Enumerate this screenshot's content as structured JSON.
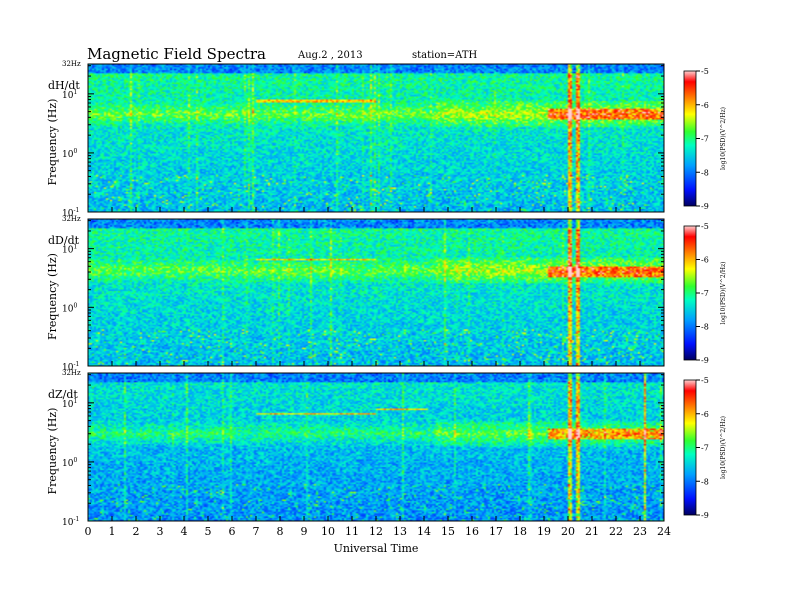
{
  "header": {
    "title": "Magnetic  Field  Spectra",
    "date": "Aug.2  , 2013",
    "station": "station=ATH"
  },
  "chart_data": [
    {
      "type": "heatmap",
      "component": "dH/dt",
      "ylabel": "Frequency  (Hz)",
      "xlabel": "",
      "xlim": [
        0,
        24
      ],
      "ylim": [
        0.1,
        32
      ],
      "yscale": "log",
      "top_label": "32Hz",
      "y_ticks": [
        {
          "label": "10",
          "exp": "1",
          "value": 10
        },
        {
          "label": "10",
          "exp": "0",
          "value": 1
        },
        {
          "label": "10",
          "exp": "-1",
          "value": 0.1
        }
      ],
      "colorbar": {
        "ticks": [
          "-5",
          "-6",
          "-7",
          "-8",
          "-9"
        ],
        "range": [
          -9,
          -5
        ],
        "label": "log10(PSD)(V^2/Hz)"
      },
      "features": {
        "band_freq": 4.5,
        "line_segments": [
          {
            "from": 7,
            "to": 12,
            "freq": 7.5
          }
        ],
        "intense_windows": [
          {
            "from": 19.2,
            "to": 24,
            "freq": 4.5
          }
        ],
        "broadband_spikes": [
          20.1,
          20.4
        ]
      }
    },
    {
      "type": "heatmap",
      "component": "dD/dt",
      "ylabel": "Frequency  (Hz)",
      "xlabel": "",
      "xlim": [
        0,
        24
      ],
      "ylim": [
        0.1,
        32
      ],
      "yscale": "log",
      "top_label": "32Hz",
      "y_ticks": [
        {
          "label": "10",
          "exp": "1",
          "value": 10
        },
        {
          "label": "10",
          "exp": "0",
          "value": 1
        },
        {
          "label": "10",
          "exp": "-1",
          "value": 0.1
        }
      ],
      "colorbar": {
        "ticks": [
          "-5",
          "-6",
          "-7",
          "-8",
          "-9"
        ],
        "range": [
          -9,
          -5
        ],
        "label": "log10(PSD)(V^2/Hz)"
      },
      "features": {
        "band_freq": 4.2,
        "line_segments": [
          {
            "from": 7,
            "to": 12,
            "freq": 6.5
          }
        ],
        "intense_windows": [
          {
            "from": 19.2,
            "to": 24,
            "freq": 4.0
          }
        ],
        "broadband_spikes": [
          20.1,
          20.4
        ]
      }
    },
    {
      "type": "heatmap",
      "component": "dZ/dt",
      "ylabel": "Frequency  (Hz)",
      "xlabel": "Universal  Time",
      "xlim": [
        0,
        24
      ],
      "ylim": [
        0.1,
        32
      ],
      "yscale": "log",
      "top_label": "32Hz",
      "x_ticks": [
        "0",
        "1",
        "2",
        "3",
        "4",
        "5",
        "6",
        "7",
        "8",
        "9",
        "10",
        "11",
        "12",
        "13",
        "14",
        "15",
        "16",
        "17",
        "18",
        "19",
        "20",
        "21",
        "22",
        "23",
        "24"
      ],
      "y_ticks": [
        {
          "label": "10",
          "exp": "1",
          "value": 10
        },
        {
          "label": "10",
          "exp": "0",
          "value": 1
        },
        {
          "label": "10",
          "exp": "-1",
          "value": 0.1
        }
      ],
      "colorbar": {
        "ticks": [
          "-5",
          "-6",
          "-7",
          "-8",
          "-9"
        ],
        "range": [
          -9,
          -5
        ],
        "label": "log10(PSD)(V^2/Hz)"
      },
      "features": {
        "band_freq": 3.0,
        "line_segments": [
          {
            "from": 7,
            "to": 12,
            "freq": 6.5
          },
          {
            "from": 12,
            "to": 14.2,
            "freq": 7.8
          }
        ],
        "intense_windows": [
          {
            "from": 19.2,
            "to": 24,
            "freq": 3.0
          }
        ],
        "broadband_spikes": [
          20.1,
          20.4,
          23.2
        ]
      }
    }
  ]
}
